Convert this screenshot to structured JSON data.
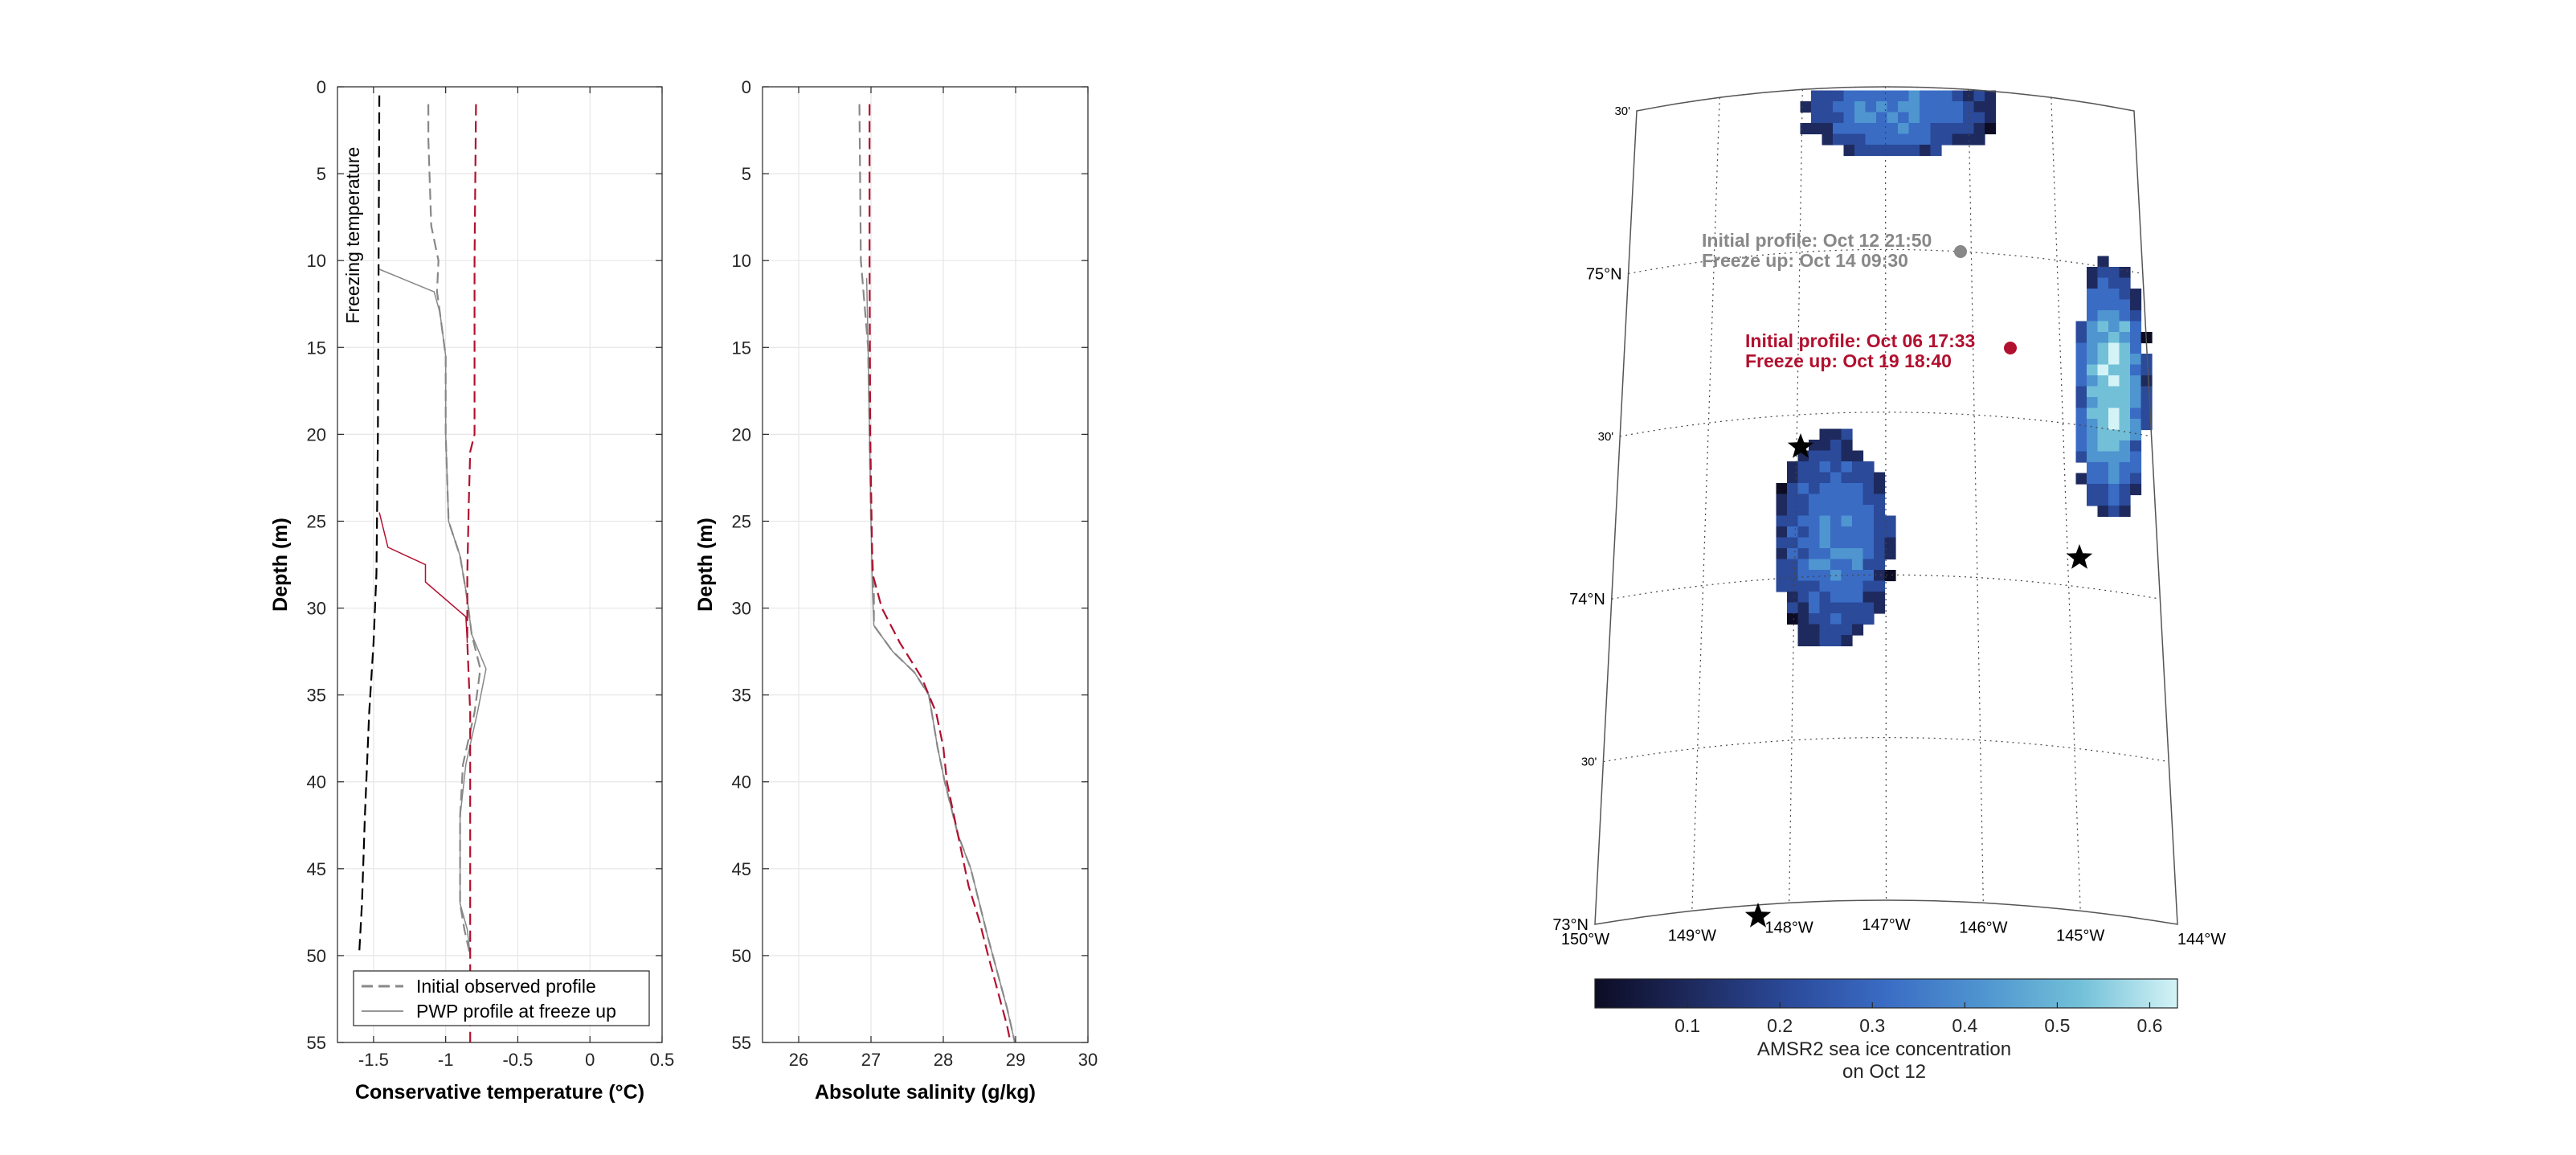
{
  "colors": {
    "gray": "#888888",
    "red": "#b2102f",
    "black": "#000000",
    "grid": "#e6e6e6",
    "colormap": [
      "#0c0c24",
      "#1e2a5e",
      "#2b4a9a",
      "#3a6cc4",
      "#4f95d0",
      "#72c0d8",
      "#d4f3f6"
    ]
  },
  "chart_data": [
    {
      "type": "line",
      "xlabel": "Conservative temperature (°C)",
      "ylabel": "Depth (m)",
      "xlim": [
        -1.75,
        0.5
      ],
      "ylim": [
        0,
        55
      ],
      "y_reversed": true,
      "xticks": [
        -1.5,
        -1,
        -0.5,
        0,
        0.5
      ],
      "xtick_labels": [
        "-1.5",
        "-1",
        "-0.5",
        "0",
        "0.5"
      ],
      "yticks": [
        0,
        5,
        10,
        15,
        20,
        25,
        30,
        35,
        40,
        45,
        50,
        55
      ],
      "grid": true,
      "annotations": [
        {
          "text": "Freezing temperature",
          "x": -1.5,
          "y": 14,
          "rotation": -90
        }
      ],
      "legend": {
        "position": "bottom-right",
        "entries": [
          {
            "label": "Initial observed profile",
            "style": "dashed",
            "color": "#888888"
          },
          {
            "label": "PWP profile at freeze up",
            "style": "solid",
            "color": "#888888"
          }
        ]
      },
      "series": [
        {
          "color": "#000000",
          "style": "dashed",
          "width": 2.2,
          "points": [
            [
              -1.46,
              0.5
            ],
            [
              -1.465,
              10
            ],
            [
              -1.47,
              20
            ],
            [
              -1.48,
              28
            ],
            [
              -1.5,
              32
            ],
            [
              -1.53,
              36
            ],
            [
              -1.56,
              42
            ],
            [
              -1.58,
              47
            ],
            [
              -1.6,
              50
            ]
          ]
        },
        {
          "color": "#888888",
          "style": "dashed",
          "width": 2.2,
          "points": [
            [
              -1.12,
              1
            ],
            [
              -1.12,
              3
            ],
            [
              -1.1,
              8
            ],
            [
              -1.05,
              10
            ],
            [
              -1.06,
              11.8
            ],
            [
              -1.04,
              13
            ],
            [
              -1.0,
              15.5
            ],
            [
              -1.0,
              20
            ],
            [
              -0.98,
              25
            ],
            [
              -0.9,
              27
            ],
            [
              -0.85,
              29.5
            ],
            [
              -0.82,
              31.5
            ],
            [
              -0.76,
              33.5
            ],
            [
              -0.8,
              36
            ],
            [
              -0.88,
              39
            ],
            [
              -0.9,
              42
            ],
            [
              -0.9,
              47
            ],
            [
              -0.87,
              48.5
            ],
            [
              -0.83,
              50
            ]
          ]
        },
        {
          "color": "#888888",
          "style": "solid",
          "width": 1.5,
          "points": [
            [
              -1.46,
              10.5
            ],
            [
              -1.08,
              11.8
            ],
            [
              -1.04,
              13
            ],
            [
              -1.0,
              15.5
            ],
            [
              -1.0,
              20
            ],
            [
              -0.98,
              25
            ],
            [
              -0.9,
              27
            ],
            [
              -0.85,
              29.5
            ],
            [
              -0.82,
              31.5
            ],
            [
              -0.72,
              33.5
            ],
            [
              -0.78,
              36
            ],
            [
              -0.86,
              39
            ],
            [
              -0.9,
              42
            ],
            [
              -0.9,
              47
            ],
            [
              -0.85,
              48.5
            ],
            [
              -0.83,
              50
            ]
          ]
        },
        {
          "color": "#b2102f",
          "style": "dashed",
          "width": 2.2,
          "points": [
            [
              -0.79,
              1
            ],
            [
              -0.8,
              10
            ],
            [
              -0.8,
              20
            ],
            [
              -0.83,
              21
            ],
            [
              -0.84,
              24
            ],
            [
              -0.85,
              28
            ],
            [
              -0.85,
              32
            ],
            [
              -0.83,
              36
            ],
            [
              -0.83,
              40
            ],
            [
              -0.83,
              45
            ],
            [
              -0.83,
              50
            ],
            [
              -0.83,
              55
            ]
          ]
        },
        {
          "color": "#b2102f",
          "style": "solid",
          "width": 1.5,
          "points": [
            [
              -1.46,
              24.5
            ],
            [
              -1.4,
              26.5
            ],
            [
              -1.14,
              27.5
            ],
            [
              -1.14,
              28.5
            ],
            [
              -0.86,
              30.5
            ],
            [
              -0.85,
              32
            ]
          ]
        }
      ]
    },
    {
      "type": "line",
      "xlabel": "Absolute salinity (g/kg)",
      "ylabel": "Depth (m)",
      "xlim": [
        25.5,
        30
      ],
      "ylim": [
        0,
        55
      ],
      "y_reversed": true,
      "xticks": [
        26,
        27,
        28,
        29,
        30
      ],
      "yticks": [
        0,
        5,
        10,
        15,
        20,
        25,
        30,
        35,
        40,
        45,
        50,
        55
      ],
      "grid": true,
      "series": [
        {
          "color": "#888888",
          "style": "dashed",
          "width": 2.2,
          "points": [
            [
              26.84,
              1
            ],
            [
              26.86,
              10
            ],
            [
              26.96,
              15
            ],
            [
              26.98,
              20
            ],
            [
              27.0,
              25
            ],
            [
              27.04,
              29
            ],
            [
              27.04,
              31
            ],
            [
              27.3,
              32.5
            ],
            [
              27.6,
              33.7
            ],
            [
              27.8,
              35
            ],
            [
              27.92,
              38
            ],
            [
              28.02,
              40
            ],
            [
              28.2,
              43
            ],
            [
              28.38,
              45
            ],
            [
              28.5,
              47
            ],
            [
              28.62,
              49
            ],
            [
              28.75,
              51
            ],
            [
              28.88,
              53
            ],
            [
              28.99,
              55
            ]
          ]
        },
        {
          "color": "#888888",
          "style": "solid",
          "width": 1.5,
          "points": [
            [
              26.94,
              11
            ],
            [
              26.96,
              15
            ],
            [
              26.98,
              20
            ],
            [
              27.0,
              25
            ],
            [
              27.02,
              29
            ],
            [
              27.04,
              31
            ],
            [
              27.3,
              32.5
            ],
            [
              27.6,
              33.7
            ],
            [
              27.8,
              35
            ],
            [
              27.92,
              38
            ],
            [
              28.02,
              40
            ],
            [
              28.2,
              43
            ],
            [
              28.38,
              45
            ],
            [
              28.5,
              47
            ],
            [
              28.62,
              49
            ],
            [
              28.75,
              51
            ],
            [
              28.88,
              53
            ],
            [
              28.99,
              55
            ]
          ]
        },
        {
          "color": "#b2102f",
          "style": "dashed",
          "width": 2.2,
          "points": [
            [
              26.98,
              1
            ],
            [
              26.98,
              10
            ],
            [
              26.99,
              20
            ],
            [
              27.02,
              28
            ],
            [
              27.15,
              30
            ],
            [
              27.4,
              32
            ],
            [
              27.7,
              34
            ],
            [
              27.9,
              36
            ],
            [
              28.0,
              38
            ],
            [
              28.05,
              40
            ],
            [
              28.2,
              43
            ],
            [
              28.35,
              46
            ],
            [
              28.5,
              48
            ],
            [
              28.62,
              50
            ],
            [
              28.75,
              52
            ],
            [
              28.88,
              54
            ],
            [
              28.93,
              55
            ]
          ]
        }
      ]
    },
    {
      "type": "heatmap",
      "colorbar_label_line1": "AMSR2 sea ice concentration",
      "colorbar_label_line2": "on Oct 12",
      "colorbar_ticks": [
        0.1,
        0.2,
        0.3,
        0.4,
        0.5,
        0.6
      ],
      "colorbar_range": [
        0,
        0.63
      ],
      "lat_labels": [
        {
          "text": "75°N",
          "lat": 75
        },
        {
          "text": "74°N",
          "lat": 74
        },
        {
          "text": "73°N",
          "lat": 73
        }
      ],
      "lat_minor_labels": [
        {
          "text": "30'",
          "lat": 75.5
        },
        {
          "text": "30'",
          "lat": 74.5
        },
        {
          "text": "30'",
          "lat": 73.5
        }
      ],
      "lon_labels": [
        "150°W",
        "149°W",
        "148°W",
        "147°W",
        "146°W",
        "145°W",
        "144°W"
      ],
      "markers": [
        {
          "type": "dot",
          "color": "#888888",
          "label_lines": [
            "Initial profile: Oct 12 21:50",
            "Freeze up: Oct 14 09:30"
          ]
        },
        {
          "type": "dot",
          "color": "#b2102f",
          "label_lines": [
            "Initial profile: Oct 06 17:33",
            "Freeze up: Oct 19 18:40"
          ]
        },
        {
          "type": "star",
          "color": "#000000"
        },
        {
          "type": "star",
          "color": "#000000"
        },
        {
          "type": "star",
          "color": "#000000"
        }
      ]
    }
  ]
}
